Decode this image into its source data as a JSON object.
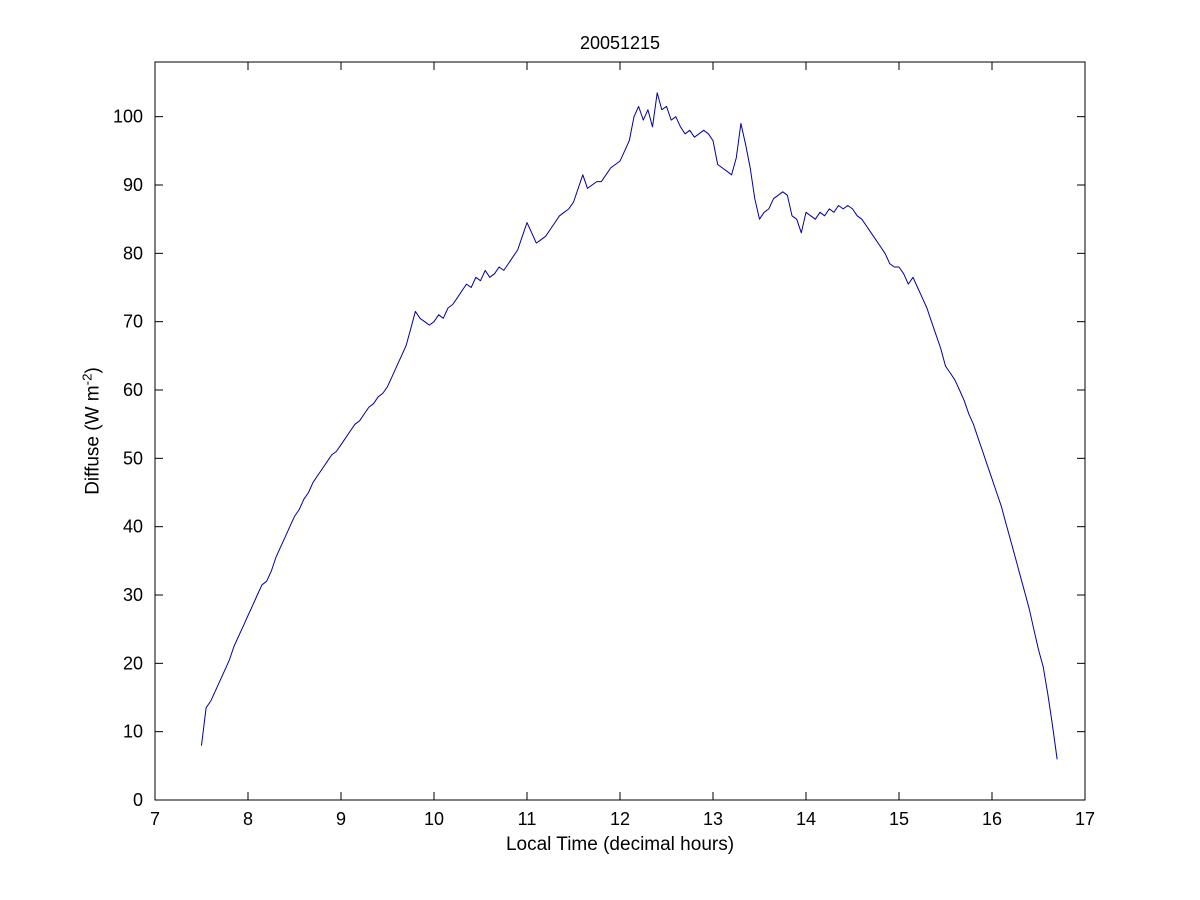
{
  "figure": {
    "ylabel_pre": "Diffuse (W m",
    "ylabel_sup": "-2",
    "ylabel_post": ")"
  },
  "chart_data": {
    "type": "line",
    "title": "20051215",
    "xlabel": "Local Time (decimal hours)",
    "ylabel": "Diffuse (W m^-2)",
    "xlim": [
      7,
      17
    ],
    "ylim": [
      0,
      108
    ],
    "xticks": [
      7,
      8,
      9,
      10,
      11,
      12,
      13,
      14,
      15,
      16,
      17
    ],
    "yticks": [
      0,
      10,
      20,
      30,
      40,
      50,
      60,
      70,
      80,
      90,
      100
    ],
    "grid": false,
    "line_color": "#00009E",
    "series": [
      {
        "name": "Diffuse",
        "points": [
          [
            7.5,
            8
          ],
          [
            7.55,
            13.5
          ],
          [
            7.6,
            14.5
          ],
          [
            7.65,
            16
          ],
          [
            7.7,
            17.5
          ],
          [
            7.75,
            19
          ],
          [
            7.8,
            20.5
          ],
          [
            7.85,
            22.5
          ],
          [
            7.9,
            24
          ],
          [
            7.95,
            25.5
          ],
          [
            8.0,
            27
          ],
          [
            8.05,
            28.5
          ],
          [
            8.1,
            30
          ],
          [
            8.15,
            31.5
          ],
          [
            8.2,
            32
          ],
          [
            8.25,
            33.5
          ],
          [
            8.3,
            35.5
          ],
          [
            8.35,
            37
          ],
          [
            8.4,
            38.5
          ],
          [
            8.45,
            40
          ],
          [
            8.5,
            41.5
          ],
          [
            8.55,
            42.5
          ],
          [
            8.6,
            44
          ],
          [
            8.65,
            45
          ],
          [
            8.7,
            46.5
          ],
          [
            8.75,
            47.5
          ],
          [
            8.8,
            48.5
          ],
          [
            8.85,
            49.5
          ],
          [
            8.9,
            50.5
          ],
          [
            8.95,
            51
          ],
          [
            9.0,
            52
          ],
          [
            9.05,
            53
          ],
          [
            9.1,
            54
          ],
          [
            9.15,
            55
          ],
          [
            9.2,
            55.5
          ],
          [
            9.25,
            56.5
          ],
          [
            9.3,
            57.5
          ],
          [
            9.35,
            58
          ],
          [
            9.4,
            59
          ],
          [
            9.45,
            59.5
          ],
          [
            9.5,
            60.5
          ],
          [
            9.55,
            62
          ],
          [
            9.6,
            63.5
          ],
          [
            9.65,
            65
          ],
          [
            9.7,
            66.5
          ],
          [
            9.75,
            69
          ],
          [
            9.8,
            71.5
          ],
          [
            9.85,
            70.5
          ],
          [
            9.9,
            70
          ],
          [
            9.95,
            69.5
          ],
          [
            10.0,
            70
          ],
          [
            10.05,
            71
          ],
          [
            10.1,
            70.5
          ],
          [
            10.15,
            72
          ],
          [
            10.2,
            72.5
          ],
          [
            10.25,
            73.5
          ],
          [
            10.3,
            74.5
          ],
          [
            10.35,
            75.5
          ],
          [
            10.4,
            75
          ],
          [
            10.45,
            76.5
          ],
          [
            10.5,
            76
          ],
          [
            10.55,
            77.5
          ],
          [
            10.6,
            76.5
          ],
          [
            10.65,
            77
          ],
          [
            10.7,
            78
          ],
          [
            10.75,
            77.5
          ],
          [
            10.8,
            78.5
          ],
          [
            10.85,
            79.5
          ],
          [
            10.9,
            80.5
          ],
          [
            10.95,
            82.5
          ],
          [
            11.0,
            84.5
          ],
          [
            11.05,
            83
          ],
          [
            11.1,
            81.5
          ],
          [
            11.15,
            82
          ],
          [
            11.2,
            82.5
          ],
          [
            11.25,
            83.5
          ],
          [
            11.3,
            84.5
          ],
          [
            11.35,
            85.5
          ],
          [
            11.4,
            86
          ],
          [
            11.45,
            86.5
          ],
          [
            11.5,
            87.5
          ],
          [
            11.55,
            89.5
          ],
          [
            11.6,
            91.5
          ],
          [
            11.65,
            89.5
          ],
          [
            11.7,
            90
          ],
          [
            11.75,
            90.5
          ],
          [
            11.8,
            90.5
          ],
          [
            11.85,
            91.5
          ],
          [
            11.9,
            92.5
          ],
          [
            11.95,
            93
          ],
          [
            12.0,
            93.5
          ],
          [
            12.05,
            95
          ],
          [
            12.1,
            96.5
          ],
          [
            12.15,
            100
          ],
          [
            12.2,
            101.5
          ],
          [
            12.25,
            99.5
          ],
          [
            12.3,
            101
          ],
          [
            12.35,
            98.5
          ],
          [
            12.4,
            103.5
          ],
          [
            12.45,
            101
          ],
          [
            12.5,
            101.5
          ],
          [
            12.55,
            99.5
          ],
          [
            12.6,
            100
          ],
          [
            12.65,
            98.5
          ],
          [
            12.7,
            97.5
          ],
          [
            12.75,
            98
          ],
          [
            12.8,
            97
          ],
          [
            12.85,
            97.5
          ],
          [
            12.9,
            98
          ],
          [
            12.95,
            97.5
          ],
          [
            13.0,
            96.5
          ],
          [
            13.05,
            93
          ],
          [
            13.1,
            92.5
          ],
          [
            13.15,
            92
          ],
          [
            13.2,
            91.5
          ],
          [
            13.25,
            94
          ],
          [
            13.3,
            99
          ],
          [
            13.35,
            96
          ],
          [
            13.4,
            92.5
          ],
          [
            13.45,
            88
          ],
          [
            13.5,
            85
          ],
          [
            13.55,
            86
          ],
          [
            13.6,
            86.5
          ],
          [
            13.65,
            88
          ],
          [
            13.7,
            88.5
          ],
          [
            13.75,
            89
          ],
          [
            13.8,
            88.5
          ],
          [
            13.85,
            85.5
          ],
          [
            13.9,
            85
          ],
          [
            13.95,
            83
          ],
          [
            14.0,
            86
          ],
          [
            14.05,
            85.5
          ],
          [
            14.1,
            85
          ],
          [
            14.15,
            86
          ],
          [
            14.2,
            85.5
          ],
          [
            14.25,
            86.5
          ],
          [
            14.3,
            86
          ],
          [
            14.35,
            87
          ],
          [
            14.4,
            86.5
          ],
          [
            14.45,
            87
          ],
          [
            14.5,
            86.5
          ],
          [
            14.55,
            85.5
          ],
          [
            14.6,
            85
          ],
          [
            14.65,
            84
          ],
          [
            14.7,
            83
          ],
          [
            14.75,
            82
          ],
          [
            14.8,
            81
          ],
          [
            14.85,
            80
          ],
          [
            14.9,
            78.5
          ],
          [
            14.95,
            78
          ],
          [
            15.0,
            78
          ],
          [
            15.05,
            77
          ],
          [
            15.1,
            75.5
          ],
          [
            15.15,
            76.5
          ],
          [
            15.2,
            75
          ],
          [
            15.25,
            73.5
          ],
          [
            15.3,
            72
          ],
          [
            15.35,
            70
          ],
          [
            15.4,
            68
          ],
          [
            15.45,
            66
          ],
          [
            15.5,
            63.5
          ],
          [
            15.55,
            62.5
          ],
          [
            15.6,
            61.5
          ],
          [
            15.65,
            60
          ],
          [
            15.7,
            58.5
          ],
          [
            15.75,
            56.5
          ],
          [
            15.8,
            55
          ],
          [
            15.85,
            53
          ],
          [
            15.9,
            51
          ],
          [
            15.95,
            49
          ],
          [
            16.0,
            47
          ],
          [
            16.05,
            45
          ],
          [
            16.1,
            43
          ],
          [
            16.15,
            40.5
          ],
          [
            16.2,
            38
          ],
          [
            16.25,
            35.5
          ],
          [
            16.3,
            33
          ],
          [
            16.35,
            30.5
          ],
          [
            16.4,
            28
          ],
          [
            16.45,
            25
          ],
          [
            16.5,
            22
          ],
          [
            16.55,
            19.5
          ],
          [
            16.6,
            15.5
          ],
          [
            16.65,
            11
          ],
          [
            16.7,
            6
          ]
        ]
      }
    ]
  }
}
